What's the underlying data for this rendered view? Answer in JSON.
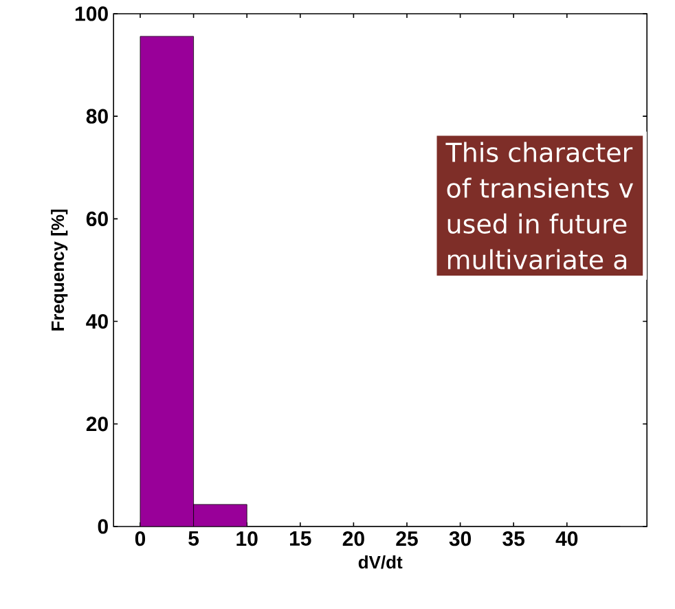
{
  "chart_data": {
    "type": "histogram",
    "xlabel": "dV/dt",
    "ylabel": "Frequency [%]",
    "bins": [
      0,
      5,
      10,
      15,
      20,
      25,
      30,
      35,
      40,
      45
    ],
    "values": [
      95.6,
      4.3,
      0,
      0,
      0,
      0,
      0,
      0,
      0
    ],
    "color": "#990099",
    "xlim": [
      -2.5,
      47.5
    ],
    "ylim": [
      0,
      100
    ],
    "xticks": [
      0,
      5,
      10,
      15,
      20,
      25,
      30,
      35,
      40
    ],
    "yticks": [
      0,
      20,
      40,
      60,
      80,
      100
    ],
    "annotations": [
      "This character",
      "of transients v",
      "used in future",
      "multivariate a"
    ]
  }
}
